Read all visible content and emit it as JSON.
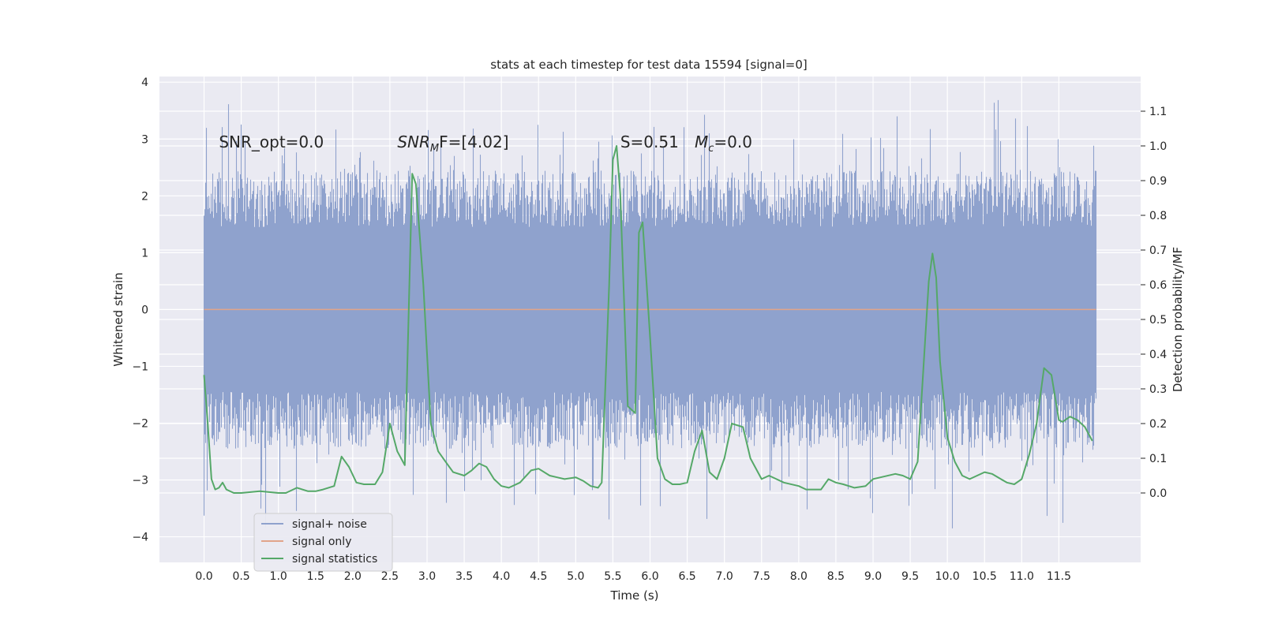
{
  "chart_data": {
    "type": "line",
    "title": "stats at each timestep for test data 15594 [signal=0]",
    "xlabel": "Time (s)",
    "ylabel": "Whitened strain",
    "y2label": "Detection probability/MF",
    "xlim": [
      -0.6,
      12.6
    ],
    "ylim": [
      -4.45,
      4.1
    ],
    "y2lim": [
      -0.2,
      1.2
    ],
    "x_ticks": [
      0.0,
      0.5,
      1.0,
      1.5,
      2.0,
      2.5,
      3.0,
      3.5,
      4.0,
      4.5,
      5.0,
      5.5,
      6.0,
      6.5,
      7.0,
      7.5,
      8.0,
      8.5,
      9.0,
      9.5,
      10.0,
      10.5,
      11.0,
      11.5
    ],
    "x_tick_labels": [
      "0.0",
      "0.5",
      "1.0",
      "1.5",
      "2.0",
      "2.5",
      "3.0",
      "3.5",
      "4.0",
      "4.5",
      "5.0",
      "5.5",
      "6.0",
      "6.5",
      "7.0",
      "7.5",
      "8.0",
      "8.5",
      "9.0",
      "9.5",
      "10.0",
      "10.5",
      "11.0",
      "11.5"
    ],
    "y_ticks": [
      4,
      3,
      2,
      1,
      0,
      -1,
      -2,
      -3,
      -4
    ],
    "y_tick_labels": [
      "4",
      "3",
      "2",
      "1",
      "0",
      "−1",
      "−2",
      "−3",
      "−4"
    ],
    "y2_ticks": [
      1.1,
      1.0,
      0.9,
      0.8,
      0.7,
      0.6,
      0.5,
      0.4,
      0.3,
      0.2,
      0.1,
      0.0
    ],
    "y2_tick_labels": [
      "1.1",
      "1.0",
      "0.9",
      "0.8",
      "0.7",
      "0.6",
      "0.5",
      "0.4",
      "0.3",
      "0.2",
      "0.1",
      "0.0"
    ],
    "grid": true,
    "legend_position": "lower-left",
    "annotations": [
      {
        "text": "SNR_opt=0.0",
        "x": 0.2,
        "y": 2.85
      },
      {
        "text": "SNR",
        "sub": "M",
        "tail": "F=[4.02]",
        "x": 2.6,
        "y": 2.85
      },
      {
        "text": "S=0.51",
        "x": 5.6,
        "y": 2.85
      },
      {
        "text": "M",
        "sub": "c",
        "tail": "=0.0",
        "x": 6.6,
        "y": 2.85
      }
    ],
    "series": [
      {
        "name": "signal+ noise",
        "color": "#8fa2cd",
        "kind": "noise",
        "x_range": [
          0.0,
          12.0
        ],
        "band": [
          -1.45,
          1.45
        ],
        "spike_max": [
          -4.1,
          3.7
        ]
      },
      {
        "name": "signal only",
        "color": "#e1a48a",
        "x": [
          0.0,
          12.0
        ],
        "y": [
          0.0,
          0.0
        ]
      },
      {
        "name": "signal statistics",
        "color": "#55a868",
        "axis": "y2",
        "x": [
          0.0,
          0.05,
          0.1,
          0.15,
          0.2,
          0.25,
          0.3,
          0.4,
          0.5,
          0.75,
          1.0,
          1.1,
          1.25,
          1.4,
          1.5,
          1.6,
          1.75,
          1.85,
          1.95,
          2.05,
          2.15,
          2.3,
          2.4,
          2.5,
          2.6,
          2.7,
          2.8,
          2.85,
          2.95,
          3.05,
          3.15,
          3.25,
          3.35,
          3.5,
          3.6,
          3.7,
          3.8,
          3.9,
          4.0,
          4.1,
          4.25,
          4.4,
          4.5,
          4.65,
          4.75,
          4.85,
          5.0,
          5.1,
          5.2,
          5.3,
          5.35,
          5.45,
          5.5,
          5.55,
          5.6,
          5.7,
          5.8,
          5.85,
          5.9,
          6.0,
          6.1,
          6.2,
          6.3,
          6.4,
          6.5,
          6.6,
          6.7,
          6.8,
          6.9,
          7.0,
          7.1,
          7.25,
          7.35,
          7.5,
          7.6,
          7.7,
          7.8,
          8.0,
          8.1,
          8.3,
          8.4,
          8.5,
          8.6,
          8.75,
          8.9,
          9.0,
          9.1,
          9.3,
          9.4,
          9.5,
          9.6,
          9.75,
          9.8,
          9.85,
          9.9,
          10.0,
          10.1,
          10.2,
          10.3,
          10.5,
          10.6,
          10.8,
          10.9,
          11.0,
          11.1,
          11.2,
          11.3,
          11.4,
          11.5,
          11.55,
          11.65,
          11.75,
          11.85,
          11.95
        ],
        "y": [
          0.34,
          0.2,
          0.04,
          0.01,
          0.015,
          0.03,
          0.01,
          0.0,
          0.0,
          0.005,
          0.0,
          0.0,
          0.015,
          0.005,
          0.005,
          0.01,
          0.02,
          0.105,
          0.075,
          0.03,
          0.025,
          0.025,
          0.06,
          0.2,
          0.12,
          0.08,
          0.92,
          0.89,
          0.6,
          0.2,
          0.12,
          0.09,
          0.06,
          0.05,
          0.065,
          0.085,
          0.075,
          0.04,
          0.02,
          0.015,
          0.03,
          0.065,
          0.07,
          0.05,
          0.045,
          0.04,
          0.045,
          0.035,
          0.02,
          0.015,
          0.03,
          0.6,
          0.96,
          1.0,
          0.86,
          0.25,
          0.23,
          0.75,
          0.78,
          0.45,
          0.1,
          0.04,
          0.025,
          0.025,
          0.03,
          0.12,
          0.18,
          0.06,
          0.04,
          0.1,
          0.2,
          0.19,
          0.1,
          0.04,
          0.05,
          0.04,
          0.03,
          0.02,
          0.01,
          0.01,
          0.04,
          0.03,
          0.025,
          0.015,
          0.02,
          0.04,
          0.045,
          0.055,
          0.05,
          0.04,
          0.09,
          0.61,
          0.69,
          0.62,
          0.38,
          0.16,
          0.09,
          0.05,
          0.04,
          0.06,
          0.055,
          0.03,
          0.025,
          0.04,
          0.11,
          0.2,
          0.36,
          0.34,
          0.21,
          0.205,
          0.22,
          0.21,
          0.19,
          0.15
        ]
      }
    ]
  }
}
